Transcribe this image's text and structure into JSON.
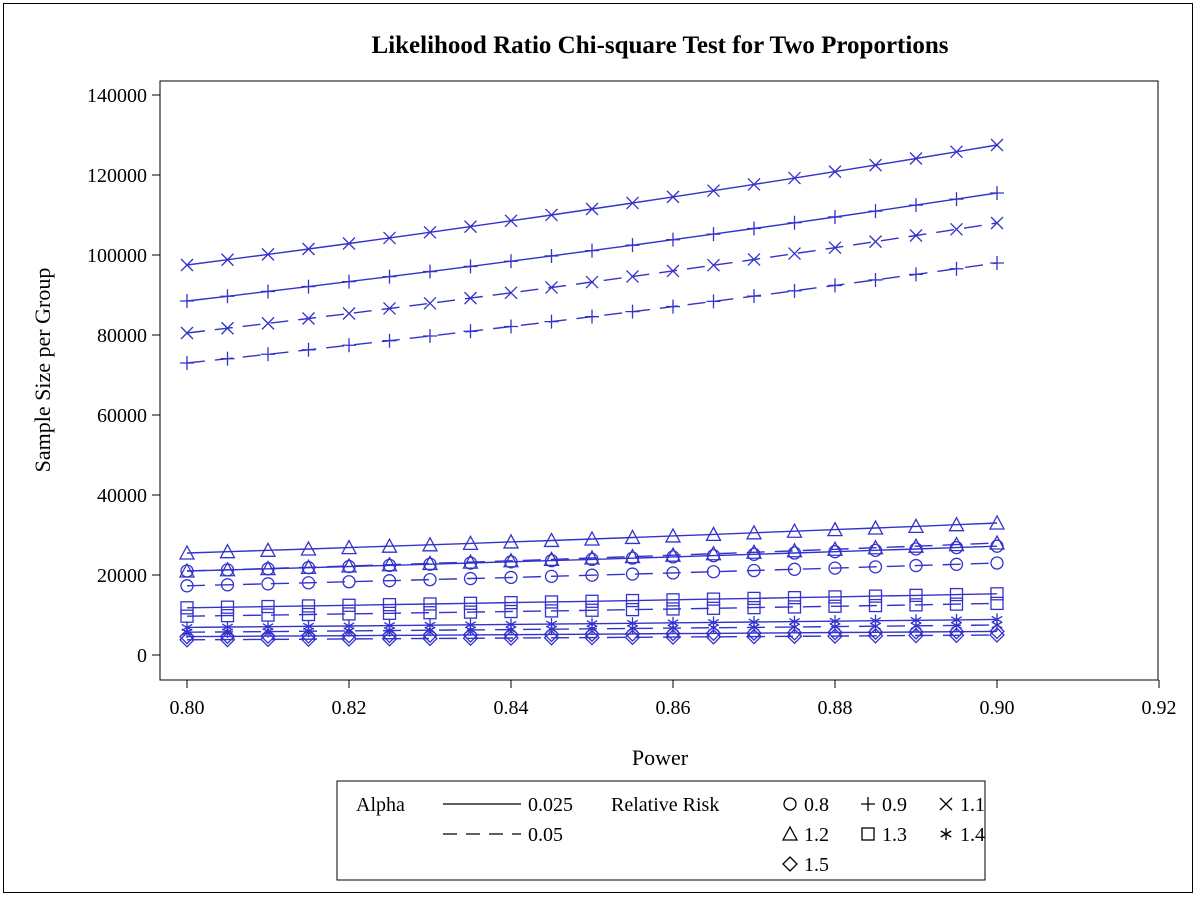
{
  "chart_data": {
    "type": "line",
    "title": "Likelihood Ratio Chi-square Test for Two Proportions",
    "xlabel": "Power",
    "ylabel": "Sample Size per Group",
    "xlim": [
      0.8,
      0.92
    ],
    "ylim": [
      0,
      140000
    ],
    "x_ticks": [
      "0.80",
      "0.82",
      "0.84",
      "0.86",
      "0.88",
      "0.90",
      "0.92"
    ],
    "y_ticks": [
      "0",
      "20000",
      "40000",
      "60000",
      "80000",
      "100000",
      "120000",
      "140000"
    ],
    "x": [
      0.8,
      0.805,
      0.81,
      0.815,
      0.82,
      0.825,
      0.83,
      0.835,
      0.84,
      0.845,
      0.85,
      0.855,
      0.86,
      0.865,
      0.87,
      0.875,
      0.88,
      0.885,
      0.89,
      0.895,
      0.9
    ],
    "grid": false,
    "legend": {
      "placement": "bottom",
      "alpha_title": "Alpha",
      "alpha_entries": [
        {
          "label": "0.025",
          "dash": "solid"
        },
        {
          "label": "0.05",
          "dash": "dashed"
        }
      ],
      "rr_title": "Relative Risk",
      "rr_entries": [
        {
          "label": "0.8",
          "marker": "circle"
        },
        {
          "label": "0.9",
          "marker": "plus"
        },
        {
          "label": "1.1",
          "marker": "x"
        },
        {
          "label": "1.2",
          "marker": "triangle"
        },
        {
          "label": "1.3",
          "marker": "square"
        },
        {
          "label": "1.4",
          "marker": "star"
        },
        {
          "label": "1.5",
          "marker": "diamond"
        }
      ]
    },
    "series_color": "#3333cc",
    "series": [
      {
        "alpha": "0.025",
        "relative_risk": "0.8",
        "marker": "circle",
        "dash": "solid",
        "start": 21000,
        "end": 27200
      },
      {
        "alpha": "0.05",
        "relative_risk": "0.8",
        "marker": "circle",
        "dash": "dashed",
        "start": 17300,
        "end": 23000
      },
      {
        "alpha": "0.025",
        "relative_risk": "0.9",
        "marker": "plus",
        "dash": "solid",
        "start": 88500,
        "end": 115500
      },
      {
        "alpha": "0.05",
        "relative_risk": "0.9",
        "marker": "plus",
        "dash": "dashed",
        "start": 73000,
        "end": 98000
      },
      {
        "alpha": "0.025",
        "relative_risk": "1.1",
        "marker": "x",
        "dash": "solid",
        "start": 97500,
        "end": 127500
      },
      {
        "alpha": "0.05",
        "relative_risk": "1.1",
        "marker": "x",
        "dash": "dashed",
        "start": 80500,
        "end": 108000
      },
      {
        "alpha": "0.025",
        "relative_risk": "1.2",
        "marker": "triangle",
        "dash": "solid",
        "start": 25500,
        "end": 33000
      },
      {
        "alpha": "0.05",
        "relative_risk": "1.2",
        "marker": "triangle",
        "dash": "dashed",
        "start": 21000,
        "end": 28000
      },
      {
        "alpha": "0.025",
        "relative_risk": "1.3",
        "marker": "square",
        "dash": "solid",
        "start": 11800,
        "end": 15300
      },
      {
        "alpha": "0.05",
        "relative_risk": "1.3",
        "marker": "square",
        "dash": "dashed",
        "start": 9700,
        "end": 12900
      },
      {
        "alpha": "0.025",
        "relative_risk": "1.4",
        "marker": "star",
        "dash": "solid",
        "start": 6900,
        "end": 8900
      },
      {
        "alpha": "0.05",
        "relative_risk": "1.4",
        "marker": "star",
        "dash": "dashed",
        "start": 5700,
        "end": 7500
      },
      {
        "alpha": "0.025",
        "relative_risk": "1.5",
        "marker": "diamond",
        "dash": "solid",
        "start": 4600,
        "end": 5900
      },
      {
        "alpha": "0.05",
        "relative_risk": "1.5",
        "marker": "diamond",
        "dash": "dashed",
        "start": 3800,
        "end": 5000
      }
    ]
  }
}
